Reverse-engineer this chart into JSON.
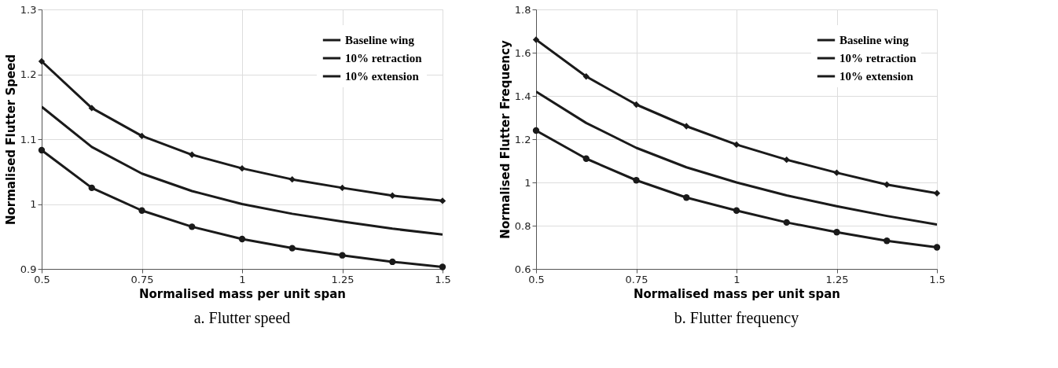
{
  "chart_data": [
    {
      "type": "line",
      "xlabel": "Normalised mass per unit span",
      "ylabel": "Normalised Flutter Speed",
      "annotations": [
        "a.    Flutter speed"
      ],
      "x": [
        0.5,
        0.625,
        0.75,
        0.875,
        1.0,
        1.125,
        1.25,
        1.375,
        1.5
      ],
      "xlim": [
        0.5,
        1.5
      ],
      "xticks": [
        0.5,
        0.75,
        1,
        1.25,
        1.5
      ],
      "ylim": [
        0.9,
        1.3
      ],
      "yticks": [
        0.9,
        1,
        1.1,
        1.2,
        1.3
      ],
      "grid": true,
      "legend": "top right",
      "series": [
        {
          "name": "Baseline wing",
          "color": "#1a1a1a",
          "marker": "none",
          "values": [
            1.15,
            1.088,
            1.047,
            1.02,
            1.0,
            0.985,
            0.973,
            0.962,
            0.953
          ]
        },
        {
          "name": "10% retraction",
          "color": "#1a1a1a",
          "marker": "diamond",
          "values": [
            1.22,
            1.148,
            1.105,
            1.076,
            1.055,
            1.038,
            1.025,
            1.013,
            1.005
          ]
        },
        {
          "name": "10% extension",
          "color": "#1a1a1a",
          "marker": "circle",
          "values": [
            1.083,
            1.025,
            0.99,
            0.965,
            0.946,
            0.932,
            0.921,
            0.911,
            0.903
          ]
        }
      ]
    },
    {
      "type": "line",
      "xlabel": "Normalised mass per unit span",
      "ylabel": "Normalised Flutter Frequency",
      "annotations": [
        "b.    Flutter frequency"
      ],
      "x": [
        0.5,
        0.625,
        0.75,
        0.875,
        1.0,
        1.125,
        1.25,
        1.375,
        1.5
      ],
      "xlim": [
        0.5,
        1.5
      ],
      "xticks": [
        0.5,
        0.75,
        1,
        1.25,
        1.5
      ],
      "ylim": [
        0.6,
        1.8
      ],
      "yticks": [
        0.6,
        0.8,
        1,
        1.2,
        1.4,
        1.6,
        1.8
      ],
      "grid": true,
      "legend": "top right",
      "series": [
        {
          "name": "Baseline wing",
          "color": "#1a1a1a",
          "marker": "none",
          "values": [
            1.42,
            1.275,
            1.16,
            1.07,
            1.0,
            0.94,
            0.89,
            0.845,
            0.805
          ]
        },
        {
          "name": "10% retraction",
          "color": "#1a1a1a",
          "marker": "diamond",
          "values": [
            1.66,
            1.49,
            1.36,
            1.26,
            1.175,
            1.105,
            1.045,
            0.99,
            0.95
          ]
        },
        {
          "name": "10% extension",
          "color": "#1a1a1a",
          "marker": "circle",
          "values": [
            1.24,
            1.11,
            1.01,
            0.93,
            0.87,
            0.815,
            0.77,
            0.73,
            0.7
          ]
        }
      ]
    }
  ]
}
